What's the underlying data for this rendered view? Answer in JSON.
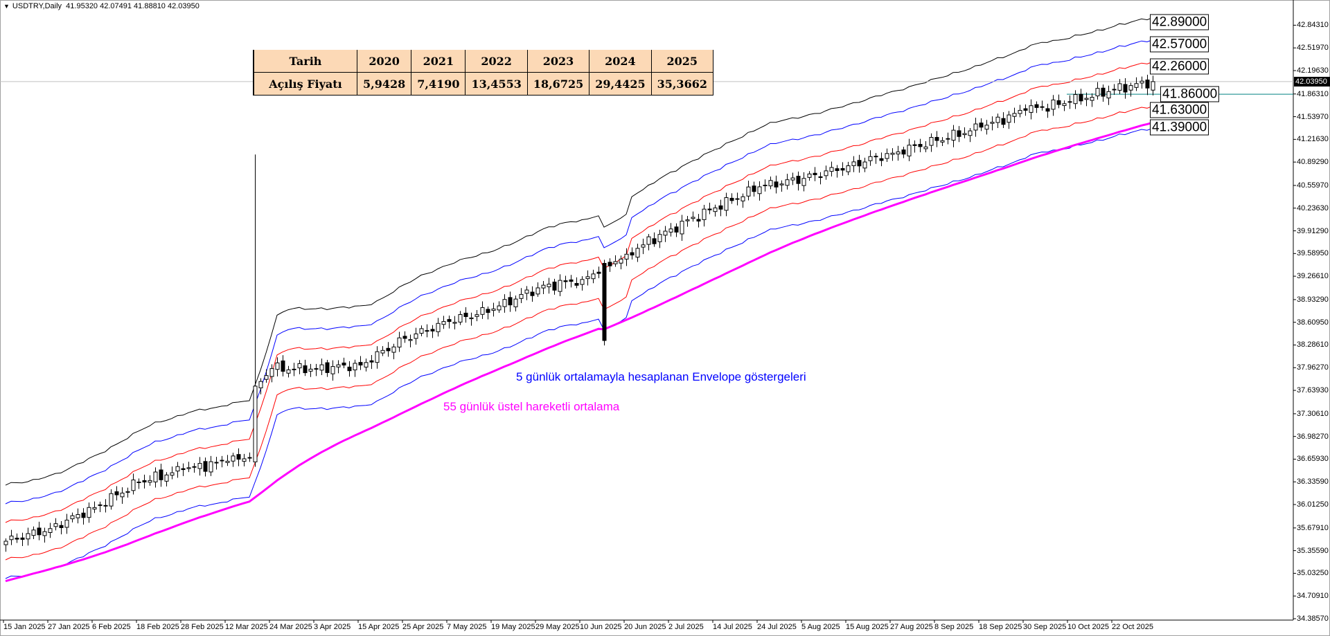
{
  "header": {
    "symbol": "USDTRY,Daily",
    "ohlc": "41.95320 42.07491 41.88810 42.03950"
  },
  "table": {
    "header_label": "Tarih",
    "row_label": "Açılış Fiyatı",
    "years": [
      "2020",
      "2021",
      "2022",
      "2023",
      "2024",
      "2025"
    ],
    "opening_prices": [
      "5,9428",
      "7,4190",
      "13,4553",
      "18,6725",
      "29,4425",
      "35,3662"
    ]
  },
  "annotations": {
    "envelope_note": "5 günlük ortalamayla hesaplanan Envelope göstergeleri",
    "ema_note": "55 günlük üstel hareketli ortalama"
  },
  "colors": {
    "envelope_outer": "#000000",
    "envelope_mid": "#0000ff",
    "envelope_inner": "#ff0000",
    "ema": "#ff00ff",
    "support_line": "#008080",
    "current_line": "#c0c0c0"
  },
  "chart_data": {
    "type": "candlestick",
    "title": "USDTRY,Daily",
    "ylim": [
      34.3857,
      42.9
    ],
    "current_price": "42.03950",
    "y_ticks": [
      "42.84310",
      "42.51970",
      "42.19630",
      "41.86310",
      "41.53970",
      "41.21630",
      "40.89290",
      "40.55970",
      "40.23630",
      "39.91290",
      "39.58950",
      "39.26610",
      "38.93290",
      "38.60950",
      "38.28610",
      "37.96270",
      "37.63930",
      "37.30610",
      "36.98270",
      "36.65930",
      "36.33590",
      "36.01250",
      "35.67910",
      "35.35590",
      "35.03250",
      "34.70910",
      "34.38570"
    ],
    "x_ticks": [
      "15 Jan 2025",
      "27 Jan 2025",
      "6 Feb 2025",
      "18 Feb 2025",
      "28 Feb 2025",
      "12 Mar 2025",
      "24 Mar 2025",
      "3 Apr 2025",
      "15 Apr 2025",
      "25 Apr 2025",
      "7 May 2025",
      "19 May 2025",
      "29 May 2025",
      "10 Jun 2025",
      "20 Jun 2025",
      "2 Jul 2025",
      "14 Jul 2025",
      "24 Jul 2025",
      "5 Aug 2025",
      "15 Aug 2025",
      "27 Aug 2025",
      "8 Sep 2025",
      "18 Sep 2025",
      "30 Sep 2025",
      "10 Oct 2025",
      "22 Oct 2025"
    ],
    "bars_per_tick": 8,
    "bar_count": 208,
    "close_anchors": [
      [
        0,
        35.49
      ],
      [
        8,
        35.67
      ],
      [
        16,
        35.97
      ],
      [
        24,
        36.33
      ],
      [
        32,
        36.51
      ],
      [
        40,
        36.63
      ],
      [
        44,
        36.68
      ],
      [
        45,
        37.7
      ],
      [
        48,
        37.95
      ],
      [
        56,
        37.95
      ],
      [
        64,
        38.0
      ],
      [
        72,
        38.38
      ],
      [
        80,
        38.62
      ],
      [
        88,
        38.8
      ],
      [
        96,
        39.1
      ],
      [
        104,
        39.22
      ],
      [
        112,
        39.58
      ],
      [
        120,
        39.94
      ],
      [
        128,
        40.24
      ],
      [
        136,
        40.54
      ],
      [
        144,
        40.66
      ],
      [
        152,
        40.84
      ],
      [
        160,
        41.02
      ],
      [
        168,
        41.2
      ],
      [
        176,
        41.39
      ],
      [
        184,
        41.63
      ],
      [
        192,
        41.75
      ],
      [
        200,
        41.93
      ],
      [
        207,
        42.0395
      ]
    ],
    "special_bars": [
      {
        "index": 45,
        "open": 36.62,
        "high": 41.0,
        "low": 36.55,
        "close": 37.7
      },
      {
        "index": 108,
        "open": 39.45,
        "high": 39.5,
        "low": 38.28,
        "close": 38.35
      }
    ],
    "ema_period": 55,
    "ema_start": 34.9,
    "envelope_period": 5,
    "envelope_deviations_pct": [
      2.25,
      1.5,
      0.75,
      -0.75,
      -1.5
    ],
    "level_labels": [
      {
        "value": "42.89000",
        "series": "envelope +2.25%"
      },
      {
        "value": "42.57000",
        "series": "envelope +1.5%"
      },
      {
        "value": "42.26000",
        "series": "envelope +0.75%"
      },
      {
        "value": "41.86000",
        "series": "horizontal line"
      },
      {
        "value": "41.63000",
        "series": "envelope -0.75%"
      },
      {
        "value": "41.39000",
        "series": "EMA 55"
      }
    ]
  }
}
